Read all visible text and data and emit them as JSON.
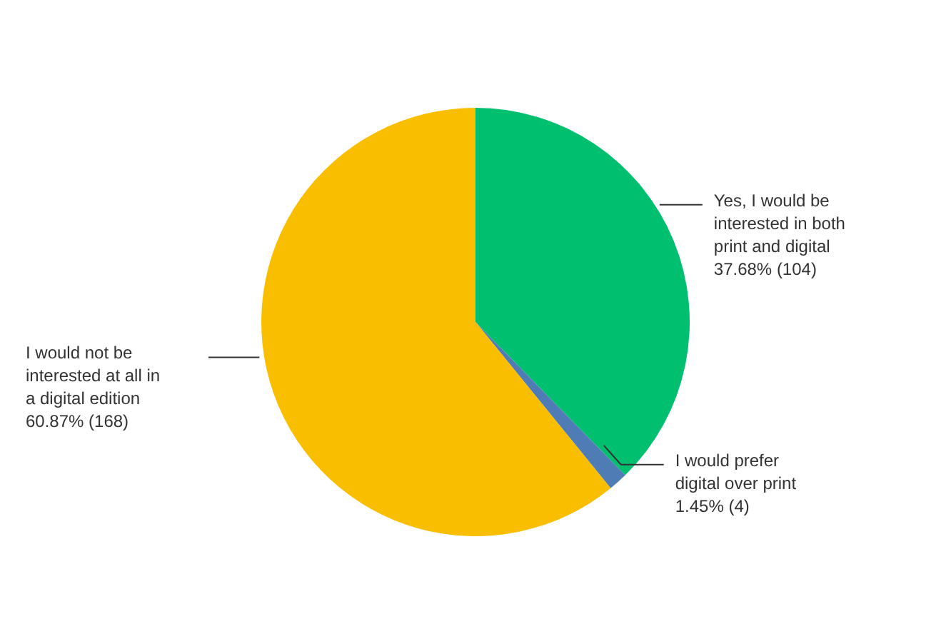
{
  "chart_data": {
    "type": "pie",
    "categories": [
      "Yes, I would be interested in both print and digital",
      "I would prefer digital over print",
      "I would not be interested at all in a digital edition"
    ],
    "values": [
      104,
      4,
      168
    ],
    "value_labels": [
      "37.68% (104)",
      "1.45% (4)",
      "60.87% (168)"
    ],
    "colors": [
      "#00bf6f",
      "#507cb6",
      "#f9be00"
    ]
  }
}
